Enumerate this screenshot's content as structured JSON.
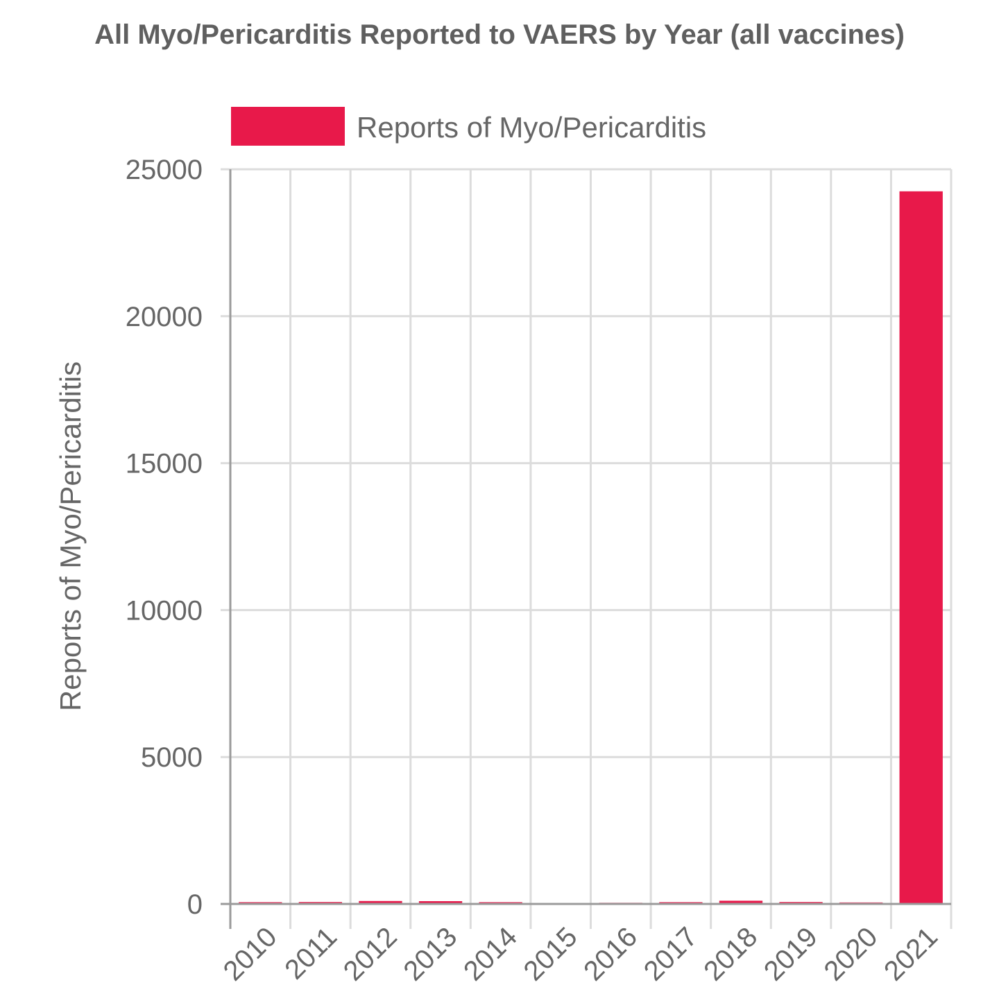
{
  "chart_data": {
    "type": "bar",
    "title": "All Myo/Pericarditis Reported to VAERS by Year (all vaccines)",
    "xlabel": "",
    "ylabel": "Reports of Myo/Pericarditis",
    "categories": [
      "2010",
      "2011",
      "2012",
      "2013",
      "2014",
      "2015",
      "2016",
      "2017",
      "2018",
      "2019",
      "2020",
      "2021"
    ],
    "series": [
      {
        "name": "Reports of Myo/Pericarditis",
        "color": "#e8194a",
        "values": [
          60,
          65,
          100,
          95,
          60,
          35,
          40,
          60,
          110,
          65,
          50,
          24250
        ]
      }
    ],
    "ylim": [
      0,
      25000
    ],
    "yticks": [
      0,
      5000,
      10000,
      15000,
      20000,
      25000
    ],
    "grid": true,
    "legend_position": "top"
  }
}
